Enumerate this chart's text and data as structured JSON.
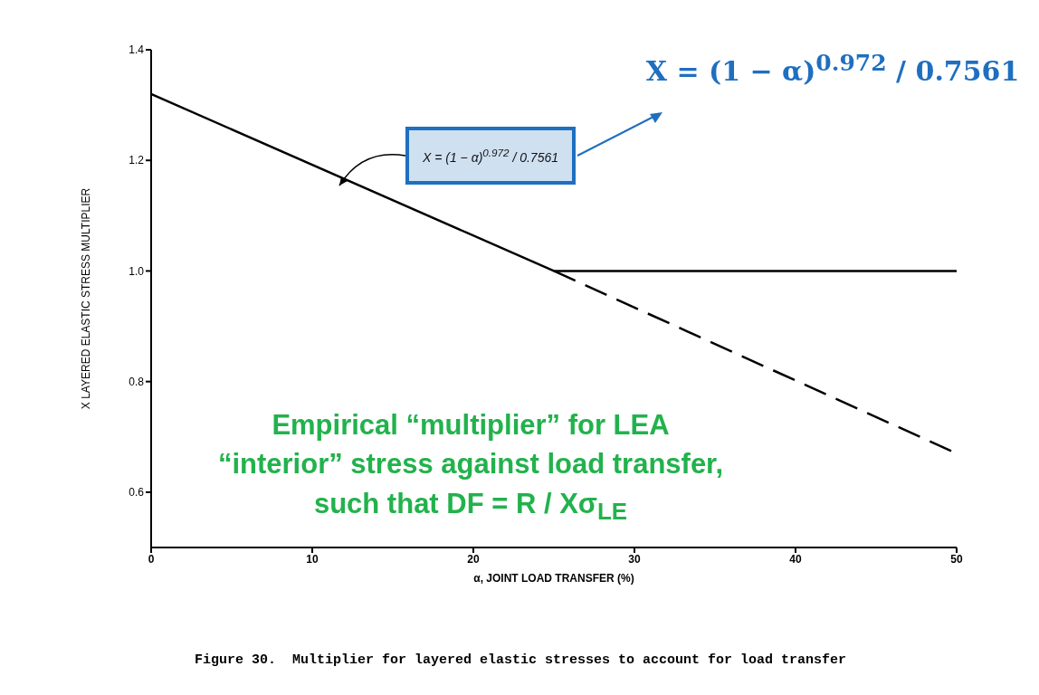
{
  "chart_data": {
    "type": "line",
    "xlabel": "α, JOINT LOAD TRANSFER (%)",
    "ylabel": "X LAYERED ELASTIC STRESS MULTIPLIER",
    "series": [
      {
        "x": [
          0,
          25,
          50
        ],
        "values": [
          1.32,
          1.0,
          1.0
        ],
        "color": "#000000",
        "line_style": "solid"
      },
      {
        "x": [
          25,
          50
        ],
        "values": [
          1.0,
          0.67
        ],
        "color": "#000000",
        "line_style": "dashed"
      }
    ],
    "xlim": [
      0,
      50
    ],
    "xticks": [
      0,
      10,
      20,
      30,
      40,
      50
    ],
    "ylim": [
      0.5,
      1.4
    ],
    "yticks": [
      {
        "value": 0.6,
        "label": "0.6"
      },
      {
        "value": 0.8,
        "label": "0.8"
      },
      {
        "value": 1.0,
        "label": "1.0"
      },
      {
        "value": 1.2,
        "label": "1.2"
      },
      {
        "value": 1.4,
        "label": "1.4"
      }
    ],
    "grid": false,
    "legend": false,
    "marker": "none",
    "annotations": [
      "X = (1 − α)$^{0.972}$ / 0.7561",
      "X = (1 − α)$^{0.972}$ / 0.7561",
      "Empirical “multiplier” for LEA “interior” stress against load transfer, such that DF = R / Xσ$_{LE}$",
      "Figure 30.  Multiplier for layered elastic stresses to account for load transfer"
    ]
  }
}
